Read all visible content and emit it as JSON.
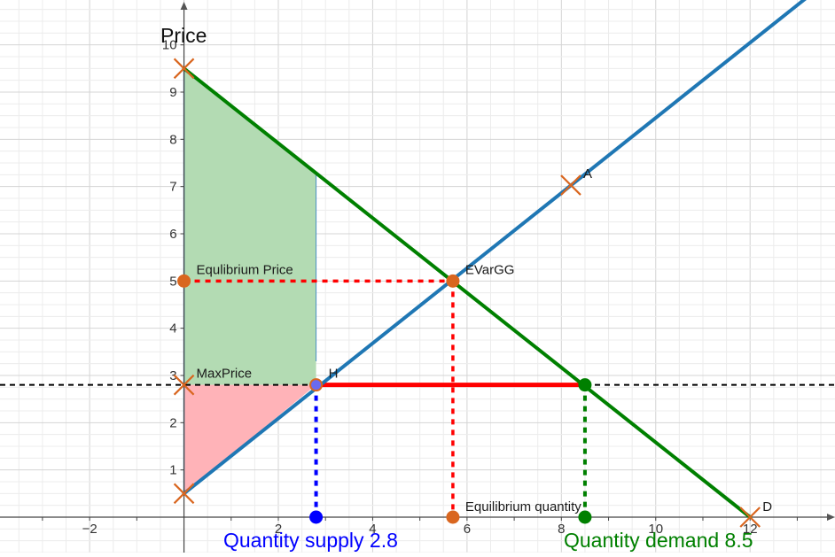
{
  "chart_data": {
    "type": "line",
    "ylabel": "Price",
    "xlim": [
      -3.9,
      13.8
    ],
    "ylim": [
      -0.75,
      10.95
    ],
    "x_ticks": [
      {
        "value": -2,
        "label": "−2"
      },
      {
        "value": 2,
        "label": "2"
      },
      {
        "value": 4,
        "label": "4"
      },
      {
        "value": 6,
        "label": "6"
      },
      {
        "value": 8,
        "label": "8"
      },
      {
        "value": 10,
        "label": "10"
      },
      {
        "value": 12,
        "label": "12"
      }
    ],
    "y_ticks": [
      {
        "value": 1,
        "label": "1"
      },
      {
        "value": 2,
        "label": "2"
      },
      {
        "value": 3,
        "label": "3"
      },
      {
        "value": 4,
        "label": "4"
      },
      {
        "value": 5,
        "label": "5"
      },
      {
        "value": 6,
        "label": "6"
      },
      {
        "value": 7,
        "label": "7"
      },
      {
        "value": 8,
        "label": "8"
      },
      {
        "value": 9,
        "label": "9"
      },
      {
        "value": 10,
        "label": "10"
      }
    ],
    "grid": true,
    "series": [
      {
        "key": "supply",
        "color": "#1f77b4",
        "points": [
          [
            0,
            0.5
          ],
          [
            13.2,
            11
          ]
        ]
      },
      {
        "key": "demand",
        "color": "#008000",
        "points": [
          [
            0,
            9.5
          ],
          [
            12,
            0
          ]
        ]
      }
    ],
    "max_price": 2.8,
    "quantity_supply": 2.8,
    "quantity_demand": 8.5,
    "equilibrium": {
      "x": 5.7,
      "y": 5.0
    },
    "shaded_regions": [
      {
        "key": "green-region",
        "color": "#b3dbb3",
        "points": [
          [
            0,
            9.5
          ],
          [
            2.8,
            7.29
          ],
          [
            2.8,
            2.8
          ],
          [
            0,
            2.8
          ]
        ]
      },
      {
        "key": "red-region",
        "color": "#ffb3b8",
        "points": [
          [
            0,
            0.5
          ],
          [
            2.8,
            2.8
          ],
          [
            0,
            2.8
          ]
        ]
      }
    ],
    "points": [
      {
        "key": "point-a",
        "label": "A",
        "x": 8.2,
        "y": 7.03,
        "marker": "cross",
        "color": "#d9661f"
      },
      {
        "key": "point-d",
        "label": "D",
        "x": 12,
        "y": 0,
        "marker": "cross",
        "color": "#d9661f"
      },
      {
        "key": "point-evargg",
        "label": "EVarGG",
        "x": 5.7,
        "y": 5.0,
        "marker": "dot",
        "color": "#d9661f"
      },
      {
        "key": "point-equilibrium-price",
        "label": "Equlibrium Price",
        "x": 0,
        "y": 5.0,
        "marker": "dot",
        "color": "#d9661f"
      },
      {
        "key": "point-equilibrium-quantity",
        "label": "Equilibrium quantity",
        "x": 5.7,
        "y": 0,
        "marker": "dot",
        "color": "#d9661f"
      },
      {
        "key": "point-maxprice",
        "label": "MaxPrice",
        "x": 0,
        "y": 2.8,
        "marker": "cross",
        "color": "#d9661f"
      },
      {
        "key": "point-h",
        "label": "H",
        "x": 2.8,
        "y": 2.8,
        "marker": "ring",
        "color": "#d9661f"
      },
      {
        "key": "point-supply-intercept",
        "label": "",
        "x": 0,
        "y": 0.5,
        "marker": "cross",
        "color": "#d9661f"
      },
      {
        "key": "point-demand-intercept",
        "label": "",
        "x": 0,
        "y": 9.5,
        "marker": "cross",
        "color": "#d9661f"
      },
      {
        "key": "point-qs",
        "label": "",
        "x": 2.8,
        "y": 0,
        "marker": "dot",
        "color": "#0000ff"
      },
      {
        "key": "point-qd-top",
        "label": "",
        "x": 8.5,
        "y": 2.8,
        "marker": "dot",
        "color": "#008000"
      },
      {
        "key": "point-qd",
        "label": "",
        "x": 8.5,
        "y": 0,
        "marker": "dot",
        "color": "#008000"
      }
    ],
    "annotations": [
      {
        "key": "quantity-supply-caption",
        "text": "Quantity supply 2.8",
        "color": "#0000ff"
      },
      {
        "key": "quantity-demand-caption",
        "text": "Quantity demand 8.5",
        "color": "#008000"
      }
    ]
  }
}
